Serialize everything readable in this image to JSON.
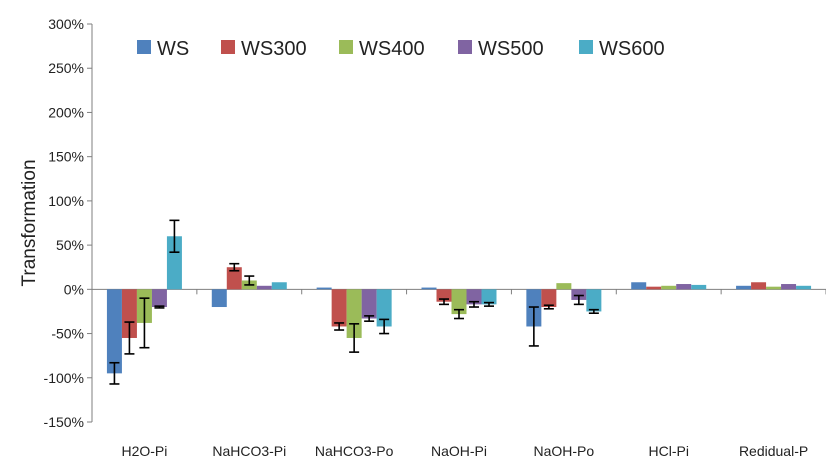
{
  "chart_data": {
    "type": "bar",
    "ylabel": "Transformation",
    "ylim": [
      -150,
      300
    ],
    "y_ticks": [
      "300%",
      "250%",
      "200%",
      "150%",
      "100%",
      "50%",
      "0%",
      "-50%",
      "-100%",
      "-150%"
    ],
    "categories": [
      "H2O-Pi",
      "NaHCO3-Pi",
      "NaHCO3-Po",
      "NaOH-Pi",
      "NaOH-Po",
      "HCl-Pi",
      "Redidual-P"
    ],
    "legend_position": "top-left",
    "grid": false,
    "error_bars": true,
    "series": [
      {
        "name": "WS",
        "color": "#4F81BD",
        "values": [
          -95,
          -20,
          2,
          2,
          -42,
          8,
          4
        ],
        "errors": [
          12,
          0,
          0,
          0,
          22,
          0,
          0
        ]
      },
      {
        "name": "WS300",
        "color": "#C0504D",
        "values": [
          -55,
          25,
          -42,
          -14,
          -20,
          3,
          8
        ],
        "errors": [
          18,
          4,
          4,
          3,
          2,
          0,
          0
        ]
      },
      {
        "name": "WS400",
        "color": "#9BBB59",
        "values": [
          -38,
          10,
          -55,
          -28,
          7,
          4,
          3
        ],
        "errors": [
          28,
          5,
          16,
          5,
          0,
          0,
          0
        ]
      },
      {
        "name": "WS500",
        "color": "#8064A2",
        "values": [
          -20,
          4,
          -33,
          -17,
          -12,
          6,
          6
        ],
        "errors": [
          1,
          0,
          3,
          3,
          5,
          0,
          0
        ]
      },
      {
        "name": "WS600",
        "color": "#4BACC6",
        "values": [
          60,
          8,
          -42,
          -17,
          -25,
          5,
          4
        ],
        "errors": [
          18,
          0,
          8,
          2,
          2,
          0,
          0
        ]
      }
    ]
  }
}
